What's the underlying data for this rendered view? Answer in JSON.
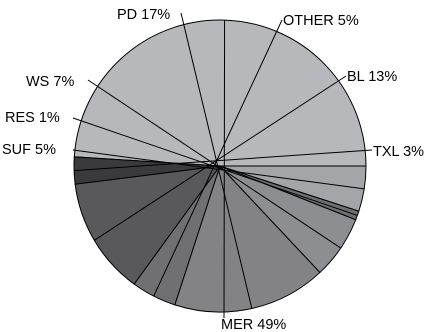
{
  "chart_data": {
    "type": "pie",
    "title": "",
    "slices": [
      {
        "label": "MER 49%",
        "value": 49,
        "color": "#b7b8bb"
      },
      {
        "label": "TXL 3%",
        "value": 3,
        "color": "#3a3a3c"
      },
      {
        "label": "BL 13%",
        "value": 13,
        "color": "#59595b"
      },
      {
        "label": "OTHER 5%",
        "value": 5,
        "color": "#707073"
      },
      {
        "label": "PD 17%",
        "value": 17,
        "color": "#838386"
      },
      {
        "label": "WS 7%",
        "value": 7,
        "color": "#8d8e91"
      },
      {
        "label": "RES 1%",
        "value": 1,
        "color": "#6e6e71"
      },
      {
        "label": "SUF 5%",
        "value": 5,
        "color": "#a4a5a8"
      }
    ]
  }
}
